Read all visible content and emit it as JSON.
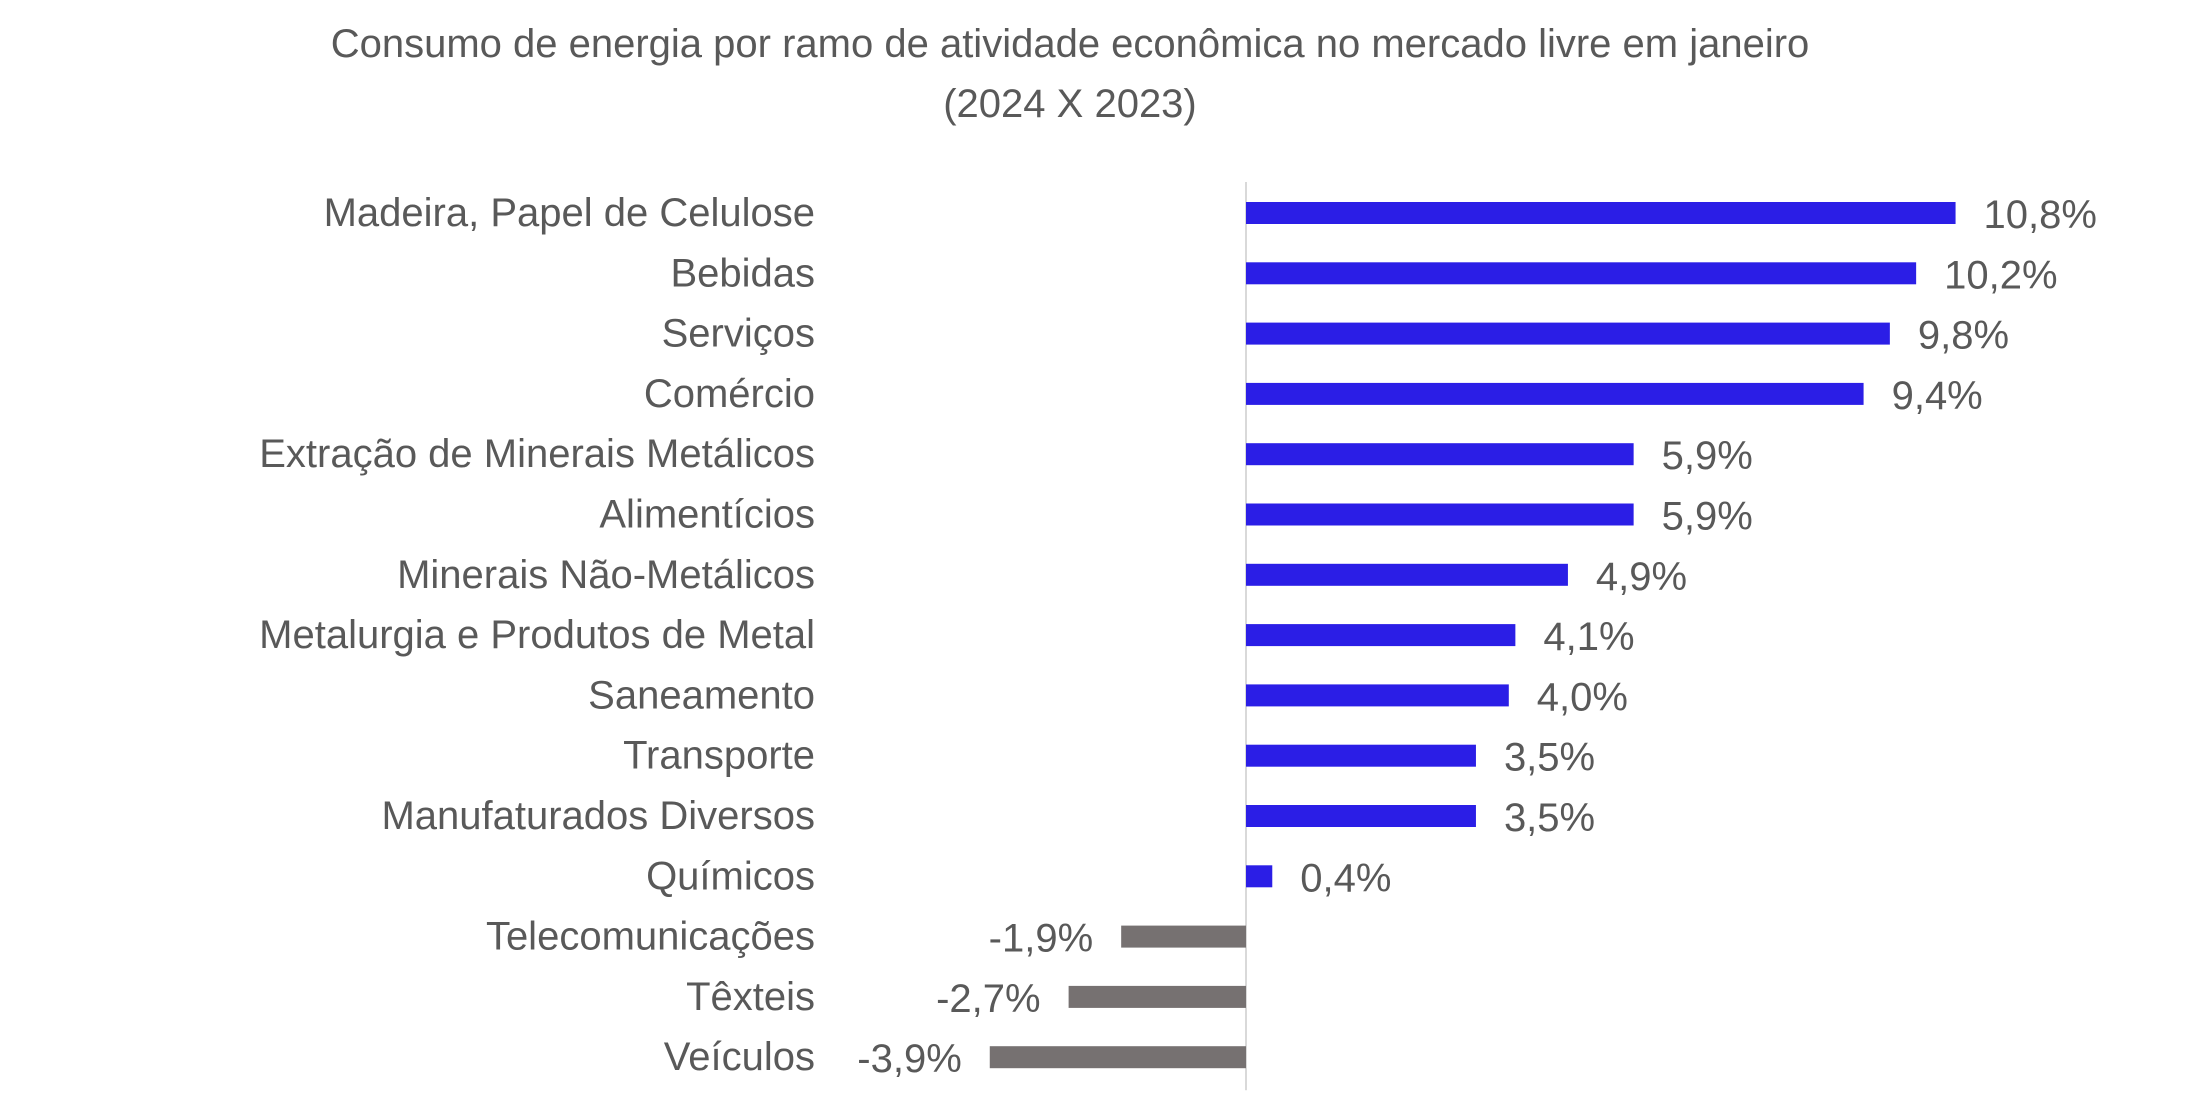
{
  "chart_data": {
    "type": "bar",
    "orientation": "horizontal",
    "title": "Consumo de energia por ramo de atividade econômica no mercado livre em janeiro",
    "subtitle": "(2024 X 2023)",
    "xlabel": "",
    "ylabel": "",
    "categories": [
      "Madeira, Papel de Celulose",
      "Bebidas",
      "Serviços",
      "Comércio",
      "Extração de Minerais Metálicos",
      "Alimentícios",
      "Minerais Não-Metálicos",
      "Metalurgia e Produtos de Metal",
      "Saneamento",
      "Transporte",
      "Manufaturados Diversos",
      "Químicos",
      "Telecomunicações",
      "Têxteis",
      "Veículos"
    ],
    "values": [
      10.8,
      10.2,
      9.8,
      9.4,
      5.9,
      5.9,
      4.9,
      4.1,
      4.0,
      3.5,
      3.5,
      0.4,
      -1.9,
      -2.7,
      -3.9
    ],
    "data_labels": [
      "10,8%",
      "10,2%",
      "9,8%",
      "9,4%",
      "5,9%",
      "5,9%",
      "4,9%",
      "4,1%",
      "4,0%",
      "3,5%",
      "3,5%",
      "0,4%",
      "-1,9%",
      "-2,7%",
      "-3,9%"
    ],
    "value_unit": "%",
    "xlim": [
      -3.9,
      10.8
    ],
    "grid": false,
    "legend": "none",
    "colors": {
      "positive": "#2b1ee6",
      "negative": "#767171",
      "axis": "#d9d9d9",
      "text": "#595959"
    }
  }
}
